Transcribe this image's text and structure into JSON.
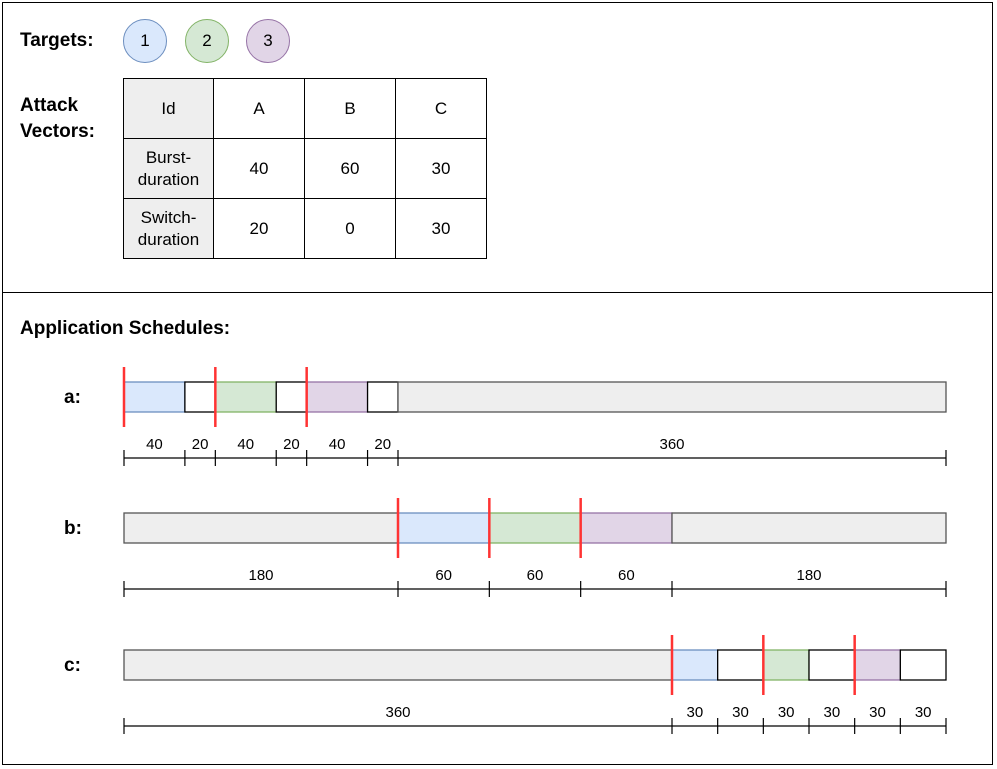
{
  "targets": {
    "label": "Targets:",
    "items": [
      {
        "id": "1",
        "fill": "#dae8fc",
        "stroke": "#6c8ebf"
      },
      {
        "id": "2",
        "fill": "#d5e8d4",
        "stroke": "#82b366"
      },
      {
        "id": "3",
        "fill": "#e1d5e7",
        "stroke": "#9673a6"
      }
    ]
  },
  "attack_vectors": {
    "label_line1": "Attack",
    "label_line2": "Vectors:",
    "header": [
      "Id",
      "A",
      "B",
      "C"
    ],
    "rows": [
      {
        "label_line1": "Burst-",
        "label_line2": "duration",
        "values": [
          "40",
          "60",
          "30"
        ]
      },
      {
        "label_line1": "Switch-",
        "label_line2": "duration",
        "values": [
          "20",
          "0",
          "30"
        ]
      }
    ]
  },
  "schedules": {
    "title": "Application Schedules:",
    "colors": {
      "idle_fill": "#eeeeee",
      "idle_stroke": "#555555",
      "switch_fill": "#ffffff",
      "marker": "#ff3333"
    },
    "items": [
      {
        "label": "a:",
        "segments": [
          {
            "kind": "target",
            "target": 1,
            "duration": 40
          },
          {
            "kind": "switch",
            "duration": 20
          },
          {
            "kind": "target",
            "target": 2,
            "duration": 40
          },
          {
            "kind": "switch",
            "duration": 20
          },
          {
            "kind": "target",
            "target": 3,
            "duration": 40
          },
          {
            "kind": "switch",
            "duration": 20
          },
          {
            "kind": "idle",
            "duration": 360
          }
        ],
        "dimension_labels": [
          "40",
          "20",
          "40",
          "20",
          "40",
          "20",
          "360"
        ]
      },
      {
        "label": "b:",
        "segments": [
          {
            "kind": "idle",
            "duration": 180
          },
          {
            "kind": "target",
            "target": 1,
            "duration": 60
          },
          {
            "kind": "target",
            "target": 2,
            "duration": 60
          },
          {
            "kind": "target",
            "target": 3,
            "duration": 60
          },
          {
            "kind": "idle",
            "duration": 180
          }
        ],
        "dimension_labels": [
          "180",
          "60",
          "60",
          "60",
          "180"
        ]
      },
      {
        "label": "c:",
        "segments": [
          {
            "kind": "idle",
            "duration": 360
          },
          {
            "kind": "target",
            "target": 1,
            "duration": 30
          },
          {
            "kind": "switch",
            "duration": 30
          },
          {
            "kind": "target",
            "target": 2,
            "duration": 30
          },
          {
            "kind": "switch",
            "duration": 30
          },
          {
            "kind": "target",
            "target": 3,
            "duration": 30
          },
          {
            "kind": "switch",
            "duration": 30
          }
        ],
        "dimension_labels": [
          "360",
          "30",
          "30",
          "30",
          "30",
          "30",
          "30"
        ]
      }
    ]
  }
}
